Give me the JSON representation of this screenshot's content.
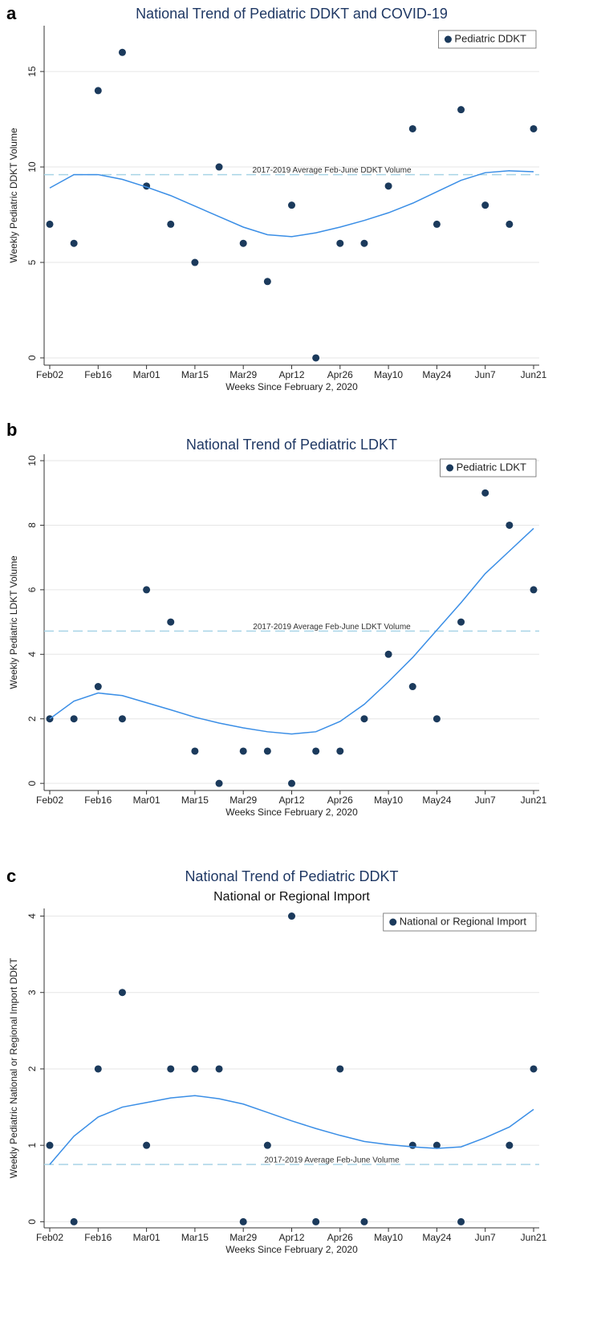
{
  "chart_data": [
    {
      "type": "scatter",
      "panel": "a",
      "title": "National Trend of Pediatric DDKT and COVID-19",
      "x_label": "Weeks Since February 2, 2020",
      "y_label": "Weekly Pediatric DDKT Volume",
      "categories": [
        "Feb02",
        null,
        "Feb16",
        null,
        "Mar01",
        null,
        "Mar15",
        null,
        "Mar29",
        null,
        "Apr12",
        null,
        "Apr26",
        null,
        "May10",
        null,
        "May24",
        null,
        "Jun7",
        null,
        "Jun21"
      ],
      "series": [
        {
          "name": "Pediatric DDKT",
          "color": "#1b3a5c",
          "values": [
            7,
            6,
            14,
            16,
            9,
            7,
            5,
            10,
            6,
            4,
            8,
            0,
            6,
            6,
            9,
            12,
            7,
            13,
            8,
            7,
            12
          ]
        },
        {
          "type": "line",
          "color": "#3a8ee6",
          "values": [
            8.9,
            9.6,
            9.6,
            9.35,
            8.95,
            8.5,
            7.95,
            7.4,
            6.85,
            6.45,
            6.35,
            6.55,
            6.85,
            7.2,
            7.6,
            8.1,
            8.7,
            9.3,
            9.7,
            9.8,
            9.75
          ]
        }
      ],
      "reference": {
        "value": 9.6,
        "label": "2017-2019 Average Feb-June DDKT Volume",
        "color": "#a8d4e6"
      },
      "ylim": [
        -0.38,
        17.4
      ],
      "yticks": [
        0,
        5,
        10,
        15
      ],
      "grid": true,
      "legend": "upper right"
    },
    {
      "type": "scatter",
      "panel": "b",
      "title": "National Trend of Pediatric LDKT",
      "x_label": "Weeks Since February 2, 2020",
      "y_label": "Weekly Pediatric LDKT Volume",
      "categories": [
        "Feb02",
        null,
        "Feb16",
        null,
        "Mar01",
        null,
        "Mar15",
        null,
        "Mar29",
        null,
        "Apr12",
        null,
        "Apr26",
        null,
        "May10",
        null,
        "May24",
        null,
        "Jun7",
        null,
        "Jun21"
      ],
      "series": [
        {
          "name": "Pediatric LDKT",
          "color": "#1b3a5c",
          "values": [
            2,
            2,
            3,
            2,
            6,
            5,
            1,
            0,
            1,
            1,
            0,
            1,
            1,
            2,
            4,
            3,
            2,
            5,
            9,
            8,
            6
          ]
        },
        {
          "type": "line",
          "color": "#3a8ee6",
          "values": [
            2.0,
            2.55,
            2.8,
            2.72,
            2.5,
            2.28,
            2.05,
            1.87,
            1.72,
            1.6,
            1.53,
            1.6,
            1.92,
            2.45,
            3.15,
            3.9,
            4.75,
            5.6,
            6.5,
            7.2,
            7.9
          ]
        }
      ],
      "reference": {
        "value": 4.72,
        "label": "2017-2019 Average Feb-June LDKT Volume",
        "color": "#a8d4e6"
      },
      "ylim": [
        -0.22,
        10.2
      ],
      "yticks": [
        0,
        2,
        4,
        6,
        8,
        10
      ],
      "grid": true,
      "legend": "upper right"
    },
    {
      "type": "scatter",
      "panel": "c",
      "title": "National Trend of Pediatric DDKT",
      "subtitle": "National or Regional Import",
      "x_label": "Weeks Since February 2, 2020",
      "y_label": "Weekly Pediatric National or Regional Import DDKT",
      "categories": [
        "Feb02",
        null,
        "Feb16",
        null,
        "Mar01",
        null,
        "Mar15",
        null,
        "Mar29",
        null,
        "Apr12",
        null,
        "Apr26",
        null,
        "May10",
        null,
        "May24",
        null,
        "Jun7",
        null,
        "Jun21"
      ],
      "series": [
        {
          "name": "National or Regional Import",
          "color": "#1b3a5c",
          "values": [
            1,
            0,
            2,
            3,
            1,
            2,
            2,
            2,
            0,
            1,
            4,
            0,
            2,
            0,
            null,
            1,
            1,
            0,
            null,
            1,
            2
          ]
        },
        {
          "type": "line",
          "color": "#3a8ee6",
          "values": [
            0.75,
            1.12,
            1.37,
            1.5,
            1.56,
            1.62,
            1.65,
            1.61,
            1.54,
            1.43,
            1.32,
            1.22,
            1.13,
            1.05,
            1.01,
            0.98,
            0.96,
            0.98,
            1.1,
            1.24,
            1.47
          ]
        }
      ],
      "reference": {
        "value": 0.75,
        "label": "2017-2019 Average Feb-June Volume",
        "color": "#a8d4e6"
      },
      "ylim": [
        -0.08,
        4.1
      ],
      "yticks": [
        0,
        1,
        2,
        3,
        4
      ],
      "grid": true,
      "legend": "upper right"
    }
  ]
}
